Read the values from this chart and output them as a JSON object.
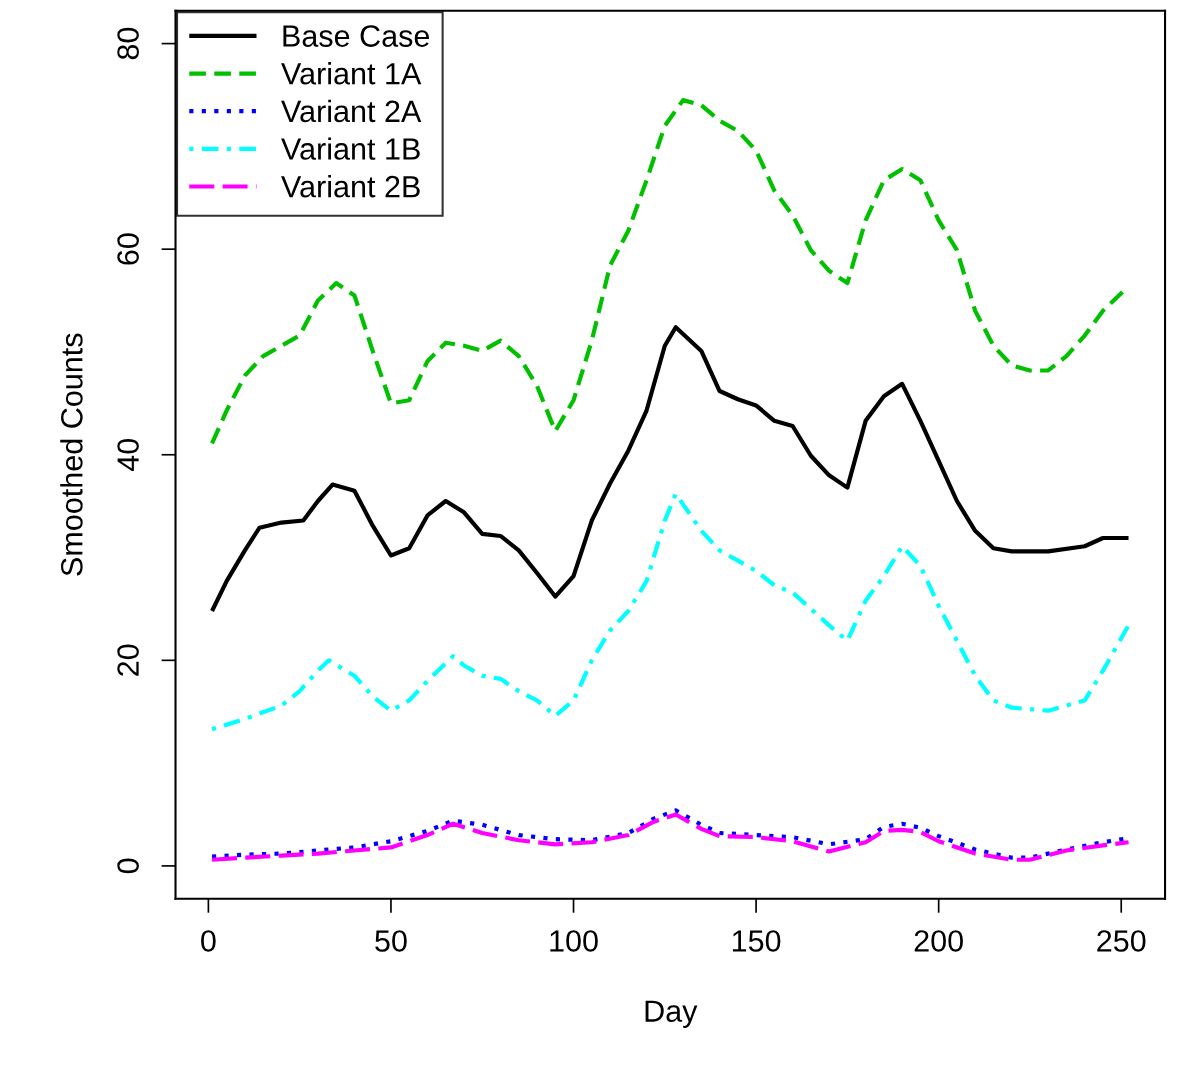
{
  "chart_data": {
    "type": "line",
    "xlabel": "Day",
    "ylabel": "Smoothed Counts",
    "xlim": [
      -9,
      262
    ],
    "ylim": [
      -3.2,
      83.2
    ],
    "xticks": [
      0,
      50,
      100,
      150,
      200,
      250
    ],
    "yticks": [
      0,
      20,
      40,
      60,
      80
    ],
    "grid": false,
    "legend": "top left",
    "marker": "none",
    "series": [
      {
        "name": "Base Case",
        "color": "#000000",
        "line_style": "solid",
        "x": [
          1,
          5,
          10,
          14,
          20,
          26,
          30,
          34,
          40,
          45,
          50,
          55,
          60,
          65,
          70,
          75,
          80,
          85,
          90,
          95,
          100,
          105,
          110,
          115,
          120,
          125,
          128,
          135,
          140,
          145,
          150,
          155,
          160,
          165,
          170,
          175,
          180,
          185,
          190,
          195,
          200,
          205,
          210,
          215,
          220,
          230,
          240,
          245,
          252
        ],
        "values": [
          24.8,
          27.7,
          30.7,
          32.9,
          33.4,
          33.6,
          35.5,
          37.1,
          36.5,
          33.1,
          30.2,
          30.9,
          34.1,
          35.5,
          34.4,
          32.3,
          32.1,
          30.7,
          28.5,
          26.2,
          28.2,
          33.6,
          37.2,
          40.4,
          44.3,
          50.6,
          52.4,
          50.1,
          46.2,
          45.4,
          44.8,
          43.3,
          42.8,
          39.9,
          38.0,
          36.8,
          43.3,
          45.7,
          46.9,
          43.3,
          39.4,
          35.5,
          32.6,
          30.9,
          30.6,
          30.6,
          31.1,
          31.9,
          31.9
        ]
      },
      {
        "name": "Variant 1A",
        "color": "#00c000",
        "line_style": "dashed",
        "x": [
          1,
          5,
          10,
          15,
          20,
          25,
          30,
          35,
          40,
          45,
          50,
          55,
          60,
          65,
          70,
          75,
          80,
          85,
          90,
          95,
          100,
          105,
          110,
          115,
          120,
          125,
          130,
          135,
          140,
          145,
          150,
          155,
          160,
          165,
          170,
          175,
          180,
          185,
          190,
          195,
          200,
          205,
          210,
          215,
          220,
          225,
          230,
          235,
          240,
          245,
          252
        ],
        "values": [
          41.1,
          44.3,
          47.7,
          49.6,
          50.6,
          51.6,
          55.0,
          56.7,
          55.5,
          50.1,
          45.0,
          45.3,
          49.1,
          50.9,
          50.6,
          50.1,
          51.1,
          49.6,
          46.7,
          42.3,
          45.3,
          51.1,
          58.4,
          61.8,
          66.7,
          72.0,
          74.5,
          74.0,
          72.5,
          71.5,
          69.6,
          65.7,
          63.3,
          59.9,
          57.9,
          56.7,
          62.8,
          66.7,
          67.8,
          66.7,
          62.8,
          59.9,
          54.0,
          50.6,
          48.7,
          48.2,
          48.2,
          49.6,
          51.6,
          54.0,
          56.4
        ]
      },
      {
        "name": "Variant 2A",
        "color": "#0000ff",
        "line_style": "dotted",
        "x": [
          1,
          10,
          20,
          30,
          40,
          50,
          60,
          67,
          75,
          85,
          95,
          105,
          115,
          122,
          128,
          135,
          140,
          150,
          160,
          170,
          180,
          185,
          190,
          195,
          200,
          210,
          220,
          225,
          235,
          245,
          252
        ],
        "values": [
          0.9,
          1.1,
          1.2,
          1.5,
          1.8,
          2.4,
          3.4,
          4.4,
          4.0,
          3.0,
          2.6,
          2.5,
          3.2,
          4.6,
          5.4,
          4.0,
          3.2,
          3.0,
          2.8,
          2.1,
          2.6,
          3.8,
          4.1,
          3.7,
          2.9,
          1.6,
          0.8,
          0.8,
          1.6,
          2.3,
          2.7
        ]
      },
      {
        "name": "Variant 1B",
        "color": "#00ffff",
        "line_style": "dashdot",
        "x": [
          1,
          10,
          20,
          25,
          30,
          33,
          40,
          45,
          50,
          55,
          60,
          67,
          70,
          75,
          80,
          85,
          90,
          95,
          100,
          105,
          110,
          115,
          120,
          125,
          128,
          135,
          140,
          145,
          150,
          155,
          160,
          165,
          170,
          175,
          180,
          185,
          190,
          195,
          200,
          205,
          210,
          215,
          220,
          230,
          240,
          245,
          252
        ],
        "values": [
          13.3,
          14.3,
          15.6,
          17.0,
          19.0,
          20.0,
          18.5,
          16.5,
          15.1,
          16.1,
          18.0,
          20.4,
          19.5,
          18.5,
          18.2,
          17.0,
          16.1,
          14.6,
          16.1,
          20.0,
          22.9,
          24.8,
          27.7,
          33.6,
          36.2,
          32.6,
          30.7,
          29.7,
          28.7,
          27.3,
          26.6,
          25.0,
          23.4,
          21.9,
          25.8,
          28.2,
          31.1,
          29.2,
          25.3,
          21.9,
          18.5,
          16.1,
          15.4,
          15.1,
          16.1,
          19.0,
          23.4
        ]
      },
      {
        "name": "Variant 2B",
        "color": "#ff00ff",
        "line_style": "longdash",
        "x": [
          1,
          10,
          20,
          30,
          40,
          50,
          60,
          67,
          75,
          85,
          95,
          105,
          115,
          122,
          128,
          135,
          140,
          150,
          160,
          170,
          180,
          185,
          190,
          195,
          200,
          210,
          220,
          225,
          235,
          245,
          252
        ],
        "values": [
          0.6,
          0.8,
          1.0,
          1.2,
          1.5,
          1.8,
          3.0,
          4.1,
          3.2,
          2.5,
          2.1,
          2.3,
          3.0,
          4.3,
          5.0,
          3.6,
          2.9,
          2.8,
          2.4,
          1.4,
          2.3,
          3.4,
          3.5,
          3.3,
          2.4,
          1.2,
          0.6,
          0.6,
          1.5,
          2.0,
          2.3
        ]
      }
    ]
  }
}
